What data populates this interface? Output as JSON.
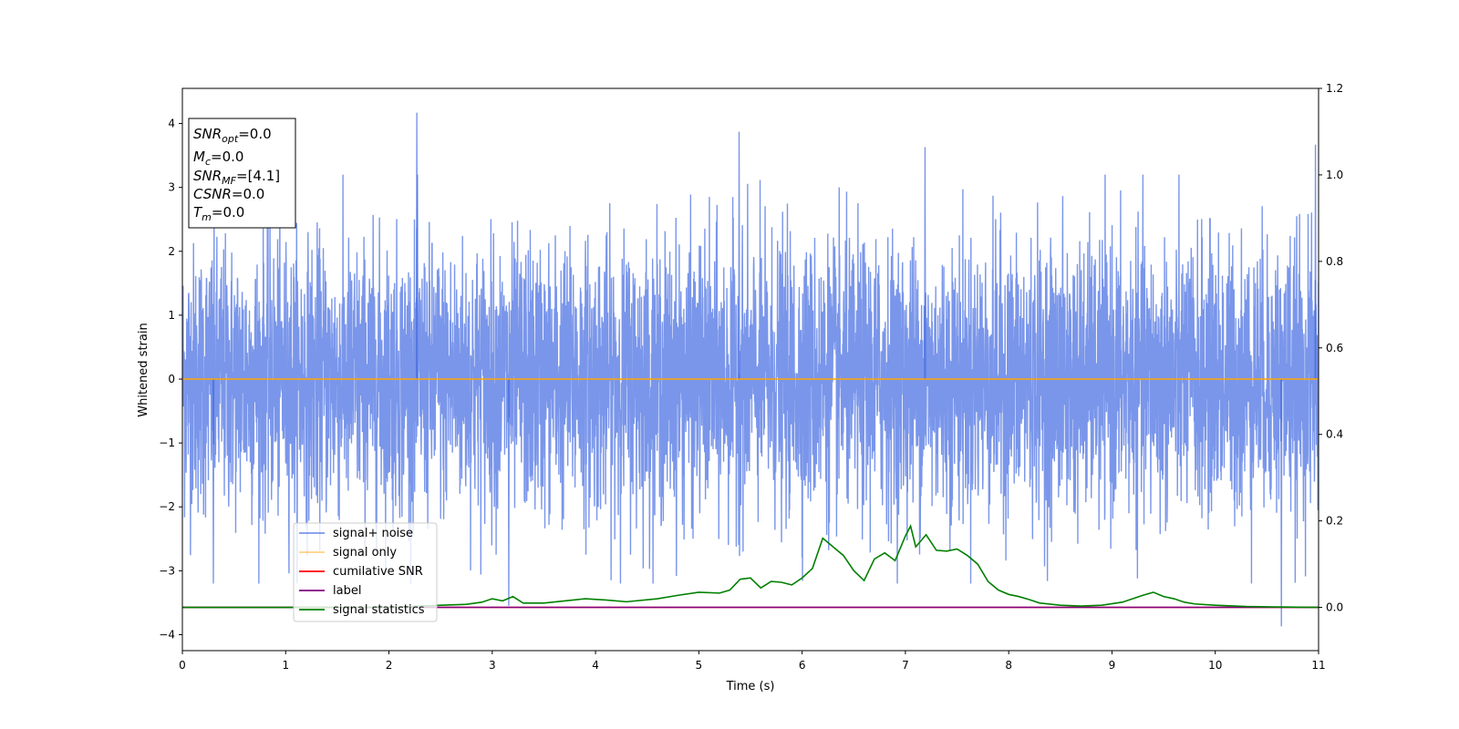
{
  "chart_data": {
    "type": "line",
    "xlabel": "Time (s)",
    "ylabel_left": "Whitened strain",
    "ylabel_right": "",
    "xlim": [
      0,
      11
    ],
    "ylim_left": [
      -4.25,
      4.55
    ],
    "ylim_right": [
      -0.1,
      1.2
    ],
    "x_ticks": [
      0,
      1,
      2,
      3,
      4,
      5,
      6,
      7,
      8,
      9,
      10,
      11
    ],
    "y_ticks_left": [
      -4,
      -3,
      -2,
      -1,
      0,
      1,
      2,
      3,
      4
    ],
    "y_ticks_right": [
      0.0,
      0.2,
      0.4,
      0.6,
      0.8,
      1.0,
      1.2
    ],
    "grid": false,
    "annotation_lines": [
      {
        "base": "SNR",
        "sub": "opt",
        "value": "=0.0"
      },
      {
        "base": "M",
        "sub": "c",
        "value": "=0.0"
      },
      {
        "base": "SNR",
        "sub": "MF",
        "value": "=[4.1]"
      },
      {
        "base": "CSNR",
        "sub": "",
        "value": "=0.0"
      },
      {
        "base": "T",
        "sub": "m",
        "value": "=0.0"
      }
    ],
    "legend_position": "lower-left",
    "series": [
      {
        "name": "signal+ noise",
        "axis": "left",
        "color": "#4169e1",
        "kind": "noise",
        "approx_range": [
          -3.9,
          4.2
        ],
        "peaks": [
          {
            "x": 2.27,
            "y": 4.17
          },
          {
            "x": 5.39,
            "y": 3.87
          },
          {
            "x": 10.97,
            "y": 3.67
          },
          {
            "x": 7.19,
            "y": 3.63
          },
          {
            "x": 10.64,
            "y": -3.87
          },
          {
            "x": 3.16,
            "y": -3.55
          },
          {
            "x": 0.3,
            "y": -3.2
          }
        ]
      },
      {
        "name": "signal only",
        "axis": "left",
        "color": "#ffa500",
        "x": [
          0,
          11
        ],
        "y": [
          0,
          0
        ]
      },
      {
        "name": "cumilative SNR",
        "axis": "right",
        "color": "#ff0000",
        "x": [
          0,
          11
        ],
        "y": [
          0,
          0
        ]
      },
      {
        "name": "label",
        "axis": "right",
        "color": "#800080",
        "x": [
          0,
          11
        ],
        "y": [
          0,
          0
        ]
      },
      {
        "name": "signal statistics",
        "axis": "right",
        "color": "#008000",
        "x": [
          0,
          0.5,
          1.0,
          1.5,
          2.0,
          2.5,
          2.75,
          2.9,
          3.0,
          3.1,
          3.2,
          3.3,
          3.5,
          3.7,
          3.9,
          4.1,
          4.3,
          4.6,
          4.8,
          5.0,
          5.2,
          5.3,
          5.4,
          5.5,
          5.6,
          5.7,
          5.8,
          5.9,
          6.0,
          6.1,
          6.2,
          6.3,
          6.4,
          6.5,
          6.6,
          6.7,
          6.8,
          6.9,
          7.0,
          7.05,
          7.1,
          7.2,
          7.3,
          7.4,
          7.5,
          7.6,
          7.7,
          7.8,
          7.9,
          8.0,
          8.1,
          8.2,
          8.3,
          8.5,
          8.7,
          8.9,
          9.1,
          9.3,
          9.4,
          9.5,
          9.6,
          9.7,
          9.8,
          10.0,
          10.3,
          10.6,
          11.0
        ],
        "y": [
          0.0,
          0.0,
          0.0,
          0.0,
          0.0,
          0.005,
          0.007,
          0.012,
          0.02,
          0.015,
          0.025,
          0.01,
          0.01,
          0.015,
          0.02,
          0.017,
          0.013,
          0.02,
          0.028,
          0.035,
          0.033,
          0.04,
          0.065,
          0.068,
          0.045,
          0.06,
          0.058,
          0.052,
          0.068,
          0.09,
          0.16,
          0.14,
          0.12,
          0.085,
          0.062,
          0.112,
          0.126,
          0.108,
          0.165,
          0.188,
          0.14,
          0.168,
          0.132,
          0.13,
          0.135,
          0.12,
          0.1,
          0.06,
          0.04,
          0.03,
          0.025,
          0.018,
          0.01,
          0.005,
          0.003,
          0.005,
          0.012,
          0.028,
          0.035,
          0.025,
          0.02,
          0.012,
          0.008,
          0.005,
          0.002,
          0.001,
          0.0
        ]
      }
    ]
  }
}
